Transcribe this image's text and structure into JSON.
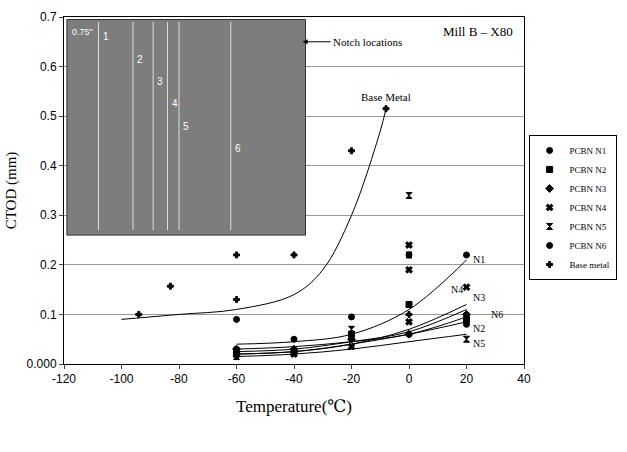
{
  "chart_data": {
    "type": "scatter",
    "title": "Mill B – X80",
    "x_label": "Temperature(℃)",
    "y_label": "CTOD (mm)",
    "xlim": [
      -120,
      40
    ],
    "xticks": [
      -120,
      -100,
      -80,
      -60,
      -40,
      -20,
      0,
      20,
      40
    ],
    "ylim": [
      0,
      0.7
    ],
    "yticks": [
      {
        "value": 0,
        "label": "0.000"
      },
      0.1,
      0.2,
      0.3,
      0.4,
      0.5,
      0.6,
      0.7
    ],
    "grid": true,
    "legend": "right",
    "inset": {
      "label": "Notch locations",
      "thickness": "0.75\"",
      "notches": [
        "1",
        "2",
        "3",
        "4",
        "5",
        "6"
      ]
    },
    "series": [
      {
        "name": "PCBN N1",
        "color": "#000000",
        "marker": "circle",
        "curve_label": "N1",
        "x": [
          -60,
          -40,
          -20,
          0,
          20
        ],
        "values": [
          0.09,
          0.05,
          0.095,
          0.22,
          0.22
        ],
        "curve": {
          "x": [
            -60,
            -40,
            -20,
            0,
            20
          ],
          "values": [
            0.04,
            0.045,
            0.06,
            0.11,
            0.21
          ]
        }
      },
      {
        "name": "PCBN N2",
        "color": "#000000",
        "marker": "square",
        "curve_label": "N2",
        "x": [
          -60,
          -40,
          -20,
          0,
          20
        ],
        "values": [
          0.02,
          0.025,
          0.06,
          0.12,
          0.09
        ],
        "curve": {
          "x": [
            -60,
            -40,
            -20,
            0,
            20
          ],
          "values": [
            0.02,
            0.025,
            0.04,
            0.06,
            0.085
          ]
        }
      },
      {
        "name": "PCBN N3",
        "color": "#000000",
        "marker": "diamond",
        "curve_label": "N3",
        "x": [
          -60,
          -40,
          -20,
          0,
          20
        ],
        "values": [
          0.03,
          0.03,
          0.05,
          0.06,
          0.1
        ],
        "curve": {
          "x": [
            -60,
            -40,
            -20,
            0,
            20
          ],
          "values": [
            0.025,
            0.03,
            0.045,
            0.065,
            0.11
          ]
        }
      },
      {
        "name": "PCBN N4",
        "color": "#000000",
        "marker": "x",
        "curve_label": "N4",
        "x": [
          -60,
          -40,
          -20,
          0,
          0,
          0,
          20
        ],
        "values": [
          0.02,
          0.02,
          0.035,
          0.24,
          0.19,
          0.085,
          0.155
        ],
        "curve": {
          "x": [
            -60,
            -40,
            -20,
            0,
            20
          ],
          "values": [
            0.02,
            0.025,
            0.04,
            0.07,
            0.12
          ]
        }
      },
      {
        "name": "PCBN N5",
        "color": "#000000",
        "marker": "hourglass",
        "curve_label": "N5",
        "x": [
          -60,
          -20,
          0,
          0,
          20
        ],
        "values": [
          0.015,
          0.07,
          0.34,
          0.22,
          0.05
        ],
        "curve": {
          "x": [
            -60,
            -40,
            -20,
            0,
            20
          ],
          "values": [
            0.015,
            0.02,
            0.03,
            0.045,
            0.06
          ]
        }
      },
      {
        "name": "PCBN N6",
        "color": "#000000",
        "marker": "circle",
        "curve_label": "N6",
        "x": [
          -60,
          -20,
          0,
          20
        ],
        "values": [
          0.03,
          0.06,
          0.06,
          0.08
        ],
        "curve": {
          "x": [
            -60,
            -40,
            -20,
            0,
            20
          ],
          "values": [
            0.03,
            0.035,
            0.045,
            0.06,
            0.095
          ]
        }
      },
      {
        "name": "Base metal",
        "color": "#000000",
        "marker": "cross",
        "curve_label": "Base Metal",
        "x": [
          -94,
          -83,
          -60,
          -60,
          -40,
          -20,
          -8,
          0
        ],
        "values": [
          0.1,
          0.157,
          0.22,
          0.13,
          0.22,
          0.43,
          0.515,
          0.1
        ],
        "curve": {
          "x": [
            -100,
            -80,
            -60,
            -40,
            -30,
            -20,
            -10,
            -8
          ],
          "values": [
            0.09,
            0.1,
            0.11,
            0.14,
            0.19,
            0.3,
            0.47,
            0.515
          ]
        }
      }
    ]
  }
}
